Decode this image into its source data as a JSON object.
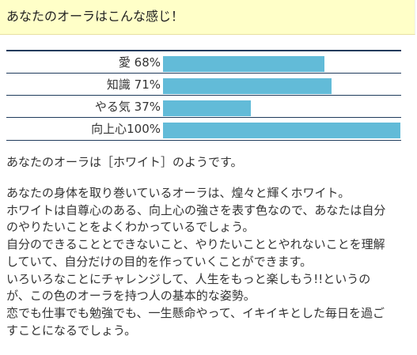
{
  "header": {
    "title": "あなたのオーラはこんな感じ！",
    "background": "#ffffc8"
  },
  "stats": [
    {
      "label": "愛 68%",
      "percent": 68
    },
    {
      "label": "知識 71%",
      "percent": 71
    },
    {
      "label": "やる気 37%",
      "percent": 37
    },
    {
      "label": "向上心100%",
      "percent": 100
    }
  ],
  "colors": {
    "bar": "#62bbd8",
    "rule": "#1f3b5c"
  },
  "result_text": "あなたのオーラは［ホワイト］のようです。",
  "description": [
    "あなたの身体を取り巻いているオーラは、煌々と輝くホワイト。",
    "ホワイトは自尊心のある、向上心の強さを表す色なので、あなたは自分",
    "のやりたいことをよくわかっているでしょう。",
    "自分のできることとできないこと、やりたいこととやれないことを理解",
    "していて、自分だけの目的を作っていくことができます。",
    "いろいろなことにチャレンジして、人生をもっと楽しもう!!というの",
    "が、この色のオーラを持つ人の基本的な姿勢。",
    "恋でも仕事でも勉強でも、一生懸命やって、イキイキとした毎日を過ご",
    "すことになるでしょう。"
  ]
}
